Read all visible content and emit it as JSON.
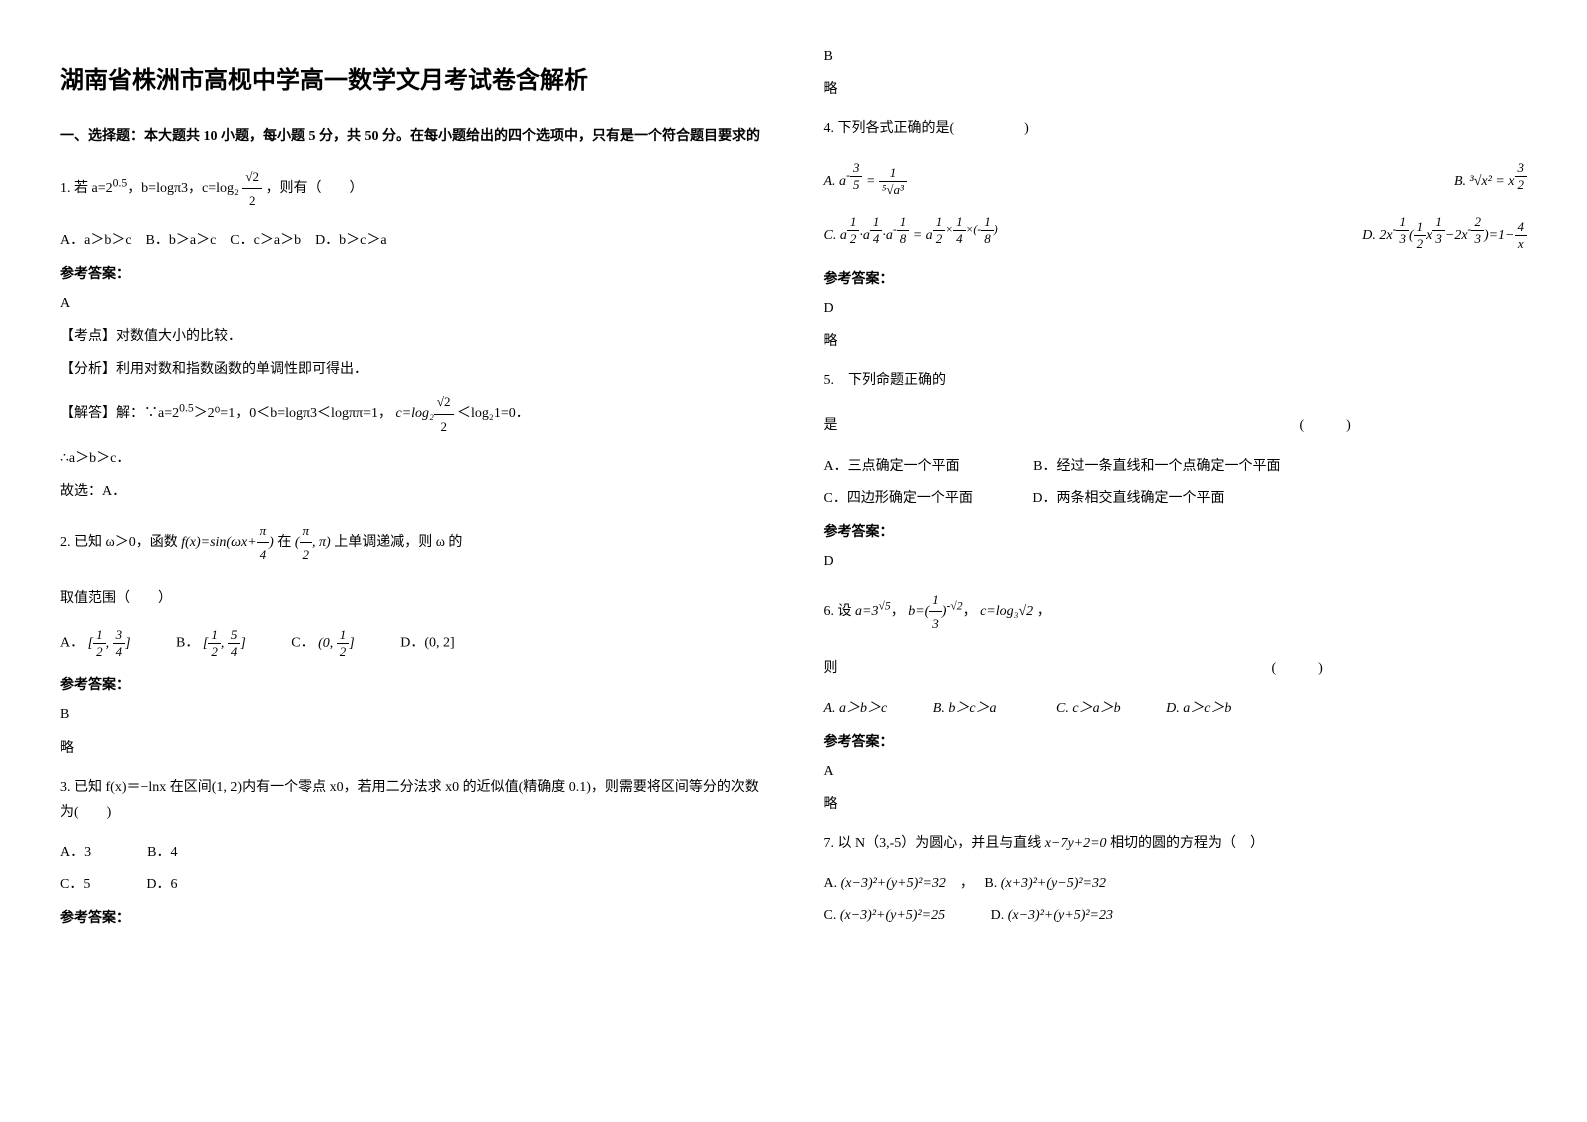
{
  "title": "湖南省株洲市高枧中学高一数学文月考试卷含解析",
  "section1": "一、选择题：本大题共 10 小题，每小题 5 分，共 50 分。在每小题给出的四个选项中，只有是一个符合题目要求的",
  "q1": {
    "stem_pre": "1. 若 a=2",
    "stem_sup": "0.5",
    "stem_mid": "，b=logπ3，c=log₂",
    "stem_end": "，则有（　　）",
    "choices": "A．a＞b＞c　B．b＞a＞c　C．c＞a＞b　D．b＞c＞a",
    "ans_label": "参考答案：",
    "ans": "A",
    "kaodian": "【考点】对数值大小的比较．",
    "fenxi": "【分析】利用对数和指数函数的单调性即可得出．",
    "jieda_pre": "【解答】解：∵a=2",
    "jieda_sup": "0.5",
    "jieda_mid": "＞2⁰=1，0＜b=logπ3＜logππ=1，",
    "jieda_end": " ＜log₂1=0．",
    "jieda2": "∴a＞b＞c．",
    "jieda3": "故选：A．"
  },
  "q2": {
    "stem_pre": "2. 已知 ω＞0，函数 ",
    "stem_fx": "f(x)=sin(ωx+π/4)",
    "stem_mid": " 在 ",
    "stem_int": "(π/2, π)",
    "stem_end": " 上单调递减，则 ω 的",
    "line2": "取值范围（　　）",
    "choices_a": "A．",
    "choices_b": "B．",
    "choices_c": "C．",
    "choices_d": "D．(0, 2]",
    "ans_label": "参考答案：",
    "ans": "B",
    "lue": "略"
  },
  "q3": {
    "stem": "3. 已知 f(x)＝−lnx 在区间(1, 2)内有一个零点 x0，若用二分法求 x0 的近似值(精确度 0.1)，则需要将区间等分的次数为(　　)",
    "choices1": "A．3　　　　B．4",
    "choices2": "C．5　　　　D．6",
    "ans_label": "参考答案：",
    "ans": "B",
    "lue": "略"
  },
  "q4": {
    "stem": "4. 下列各式正确的是(　　　　　)",
    "ans_label": "参考答案：",
    "ans": "D",
    "lue": "略"
  },
  "q5": {
    "stem_pre": "5.　下列命题正确的",
    "stem_end": "是　　　　　　　　　　　　　　　　　　　　　　　　　　　　　　　　　(　　　)",
    "a": "A．三点确定一个平面",
    "b": "B．经过一条直线和一个点确定一个平面",
    "c": "C．四边形确定一个平面",
    "d": "D．两条相交直线确定一个平面",
    "ans_label": "参考答案：",
    "ans": "D"
  },
  "q6": {
    "stem_pre": "6. 设 ",
    "stem_end": "，",
    "line2": "则　　　　　　　　　　　　　　　　　　　　　　　　　　　　　　　(　　　)",
    "a": "A. a＞b＞c",
    "b": "B. b＞c＞a",
    "c": "C. c＞a＞b",
    "d": "D. a＞c＞b",
    "ans_label": "参考答案：",
    "ans": "A",
    "lue": "略"
  },
  "q7": {
    "stem_pre": "7. 以 N（3,-5）为圆心，并且与直线 ",
    "stem_eq": "x−7y+2=0",
    "stem_end": " 相切的圆的方程为（　）",
    "a_pre": "A. ",
    "a_eq": "(x−3)²+(y+5)²=32",
    "b_pre": "B. ",
    "b_eq": "(x+3)²+(y−5)²=32",
    "c_pre": "C. ",
    "c_eq": "(x−3)²+(y+5)²=25",
    "d_pre": "D. ",
    "d_eq": "(x−3)²+(y+5)²=23"
  }
}
